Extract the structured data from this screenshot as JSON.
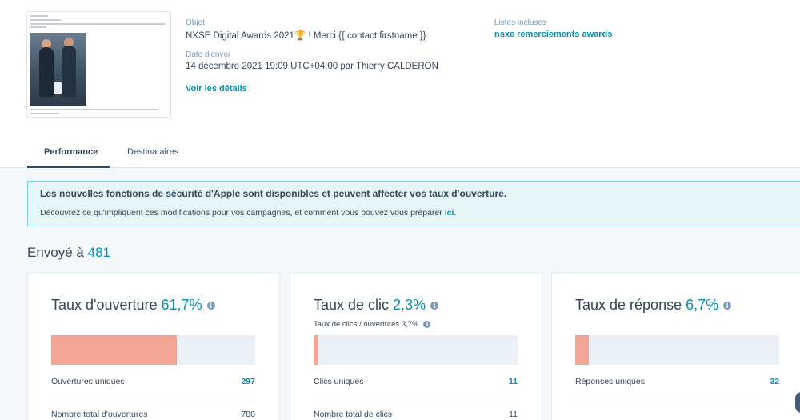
{
  "email": {
    "object_label": "Objet",
    "subject": "NXSE Digital Awards 2021🏆 ! Merci  {{ contact.firstname }}",
    "date_label": "Date d'envoi",
    "date_value": "14 décembre 2021 19:09 UTC+04:00 par Thierry CALDERON",
    "details_link": "Voir les détails",
    "lists_label": "Listes incluses",
    "list_name": "nsxe remerciements awards"
  },
  "tabs": [
    {
      "label": "Performance",
      "active": true
    },
    {
      "label": "Destinataires",
      "active": false
    }
  ],
  "alert": {
    "title": "Les nouvelles fonctions de sécurité d'Apple sont disponibles et peuvent affecter vos taux d'ouverture.",
    "text": "Découvrez ce qu'impliquent ces modifications pour vos campagnes, et comment vous pouvez vous préparer",
    "link": "ici",
    "period": "."
  },
  "sent": {
    "label": "Envoyé à",
    "count": "481"
  },
  "cards": [
    {
      "title": "Taux d'ouverture",
      "rate": "61,7%",
      "fill_percent": 61.7,
      "subline": "",
      "row1_label": "Ouvertures uniques",
      "row1_value": "297",
      "row2_label": "Nombre total d'ouvertures",
      "row2_value": "780"
    },
    {
      "title": "Taux de clic",
      "rate": "2,3%",
      "fill_percent": 2.3,
      "subline": "Taux de clics / ouvertures 3,7%",
      "row1_label": "Clics uniques",
      "row1_value": "11",
      "row2_label": "Nombre total de clics",
      "row2_value": "11"
    },
    {
      "title": "Taux de réponse",
      "rate": "6,7%",
      "fill_percent": 6.7,
      "subline": "",
      "row1_label": "Réponses uniques",
      "row1_value": "32",
      "row2_label": "",
      "row2_value": ""
    }
  ],
  "colors": {
    "accent": "#0091ae",
    "bar_fill": "#f2a594",
    "bar_track": "#eaf0f6",
    "alert_bg": "#e5f5f8",
    "alert_border": "#7fd1de"
  },
  "icons": {
    "info": "info-circle-icon"
  }
}
